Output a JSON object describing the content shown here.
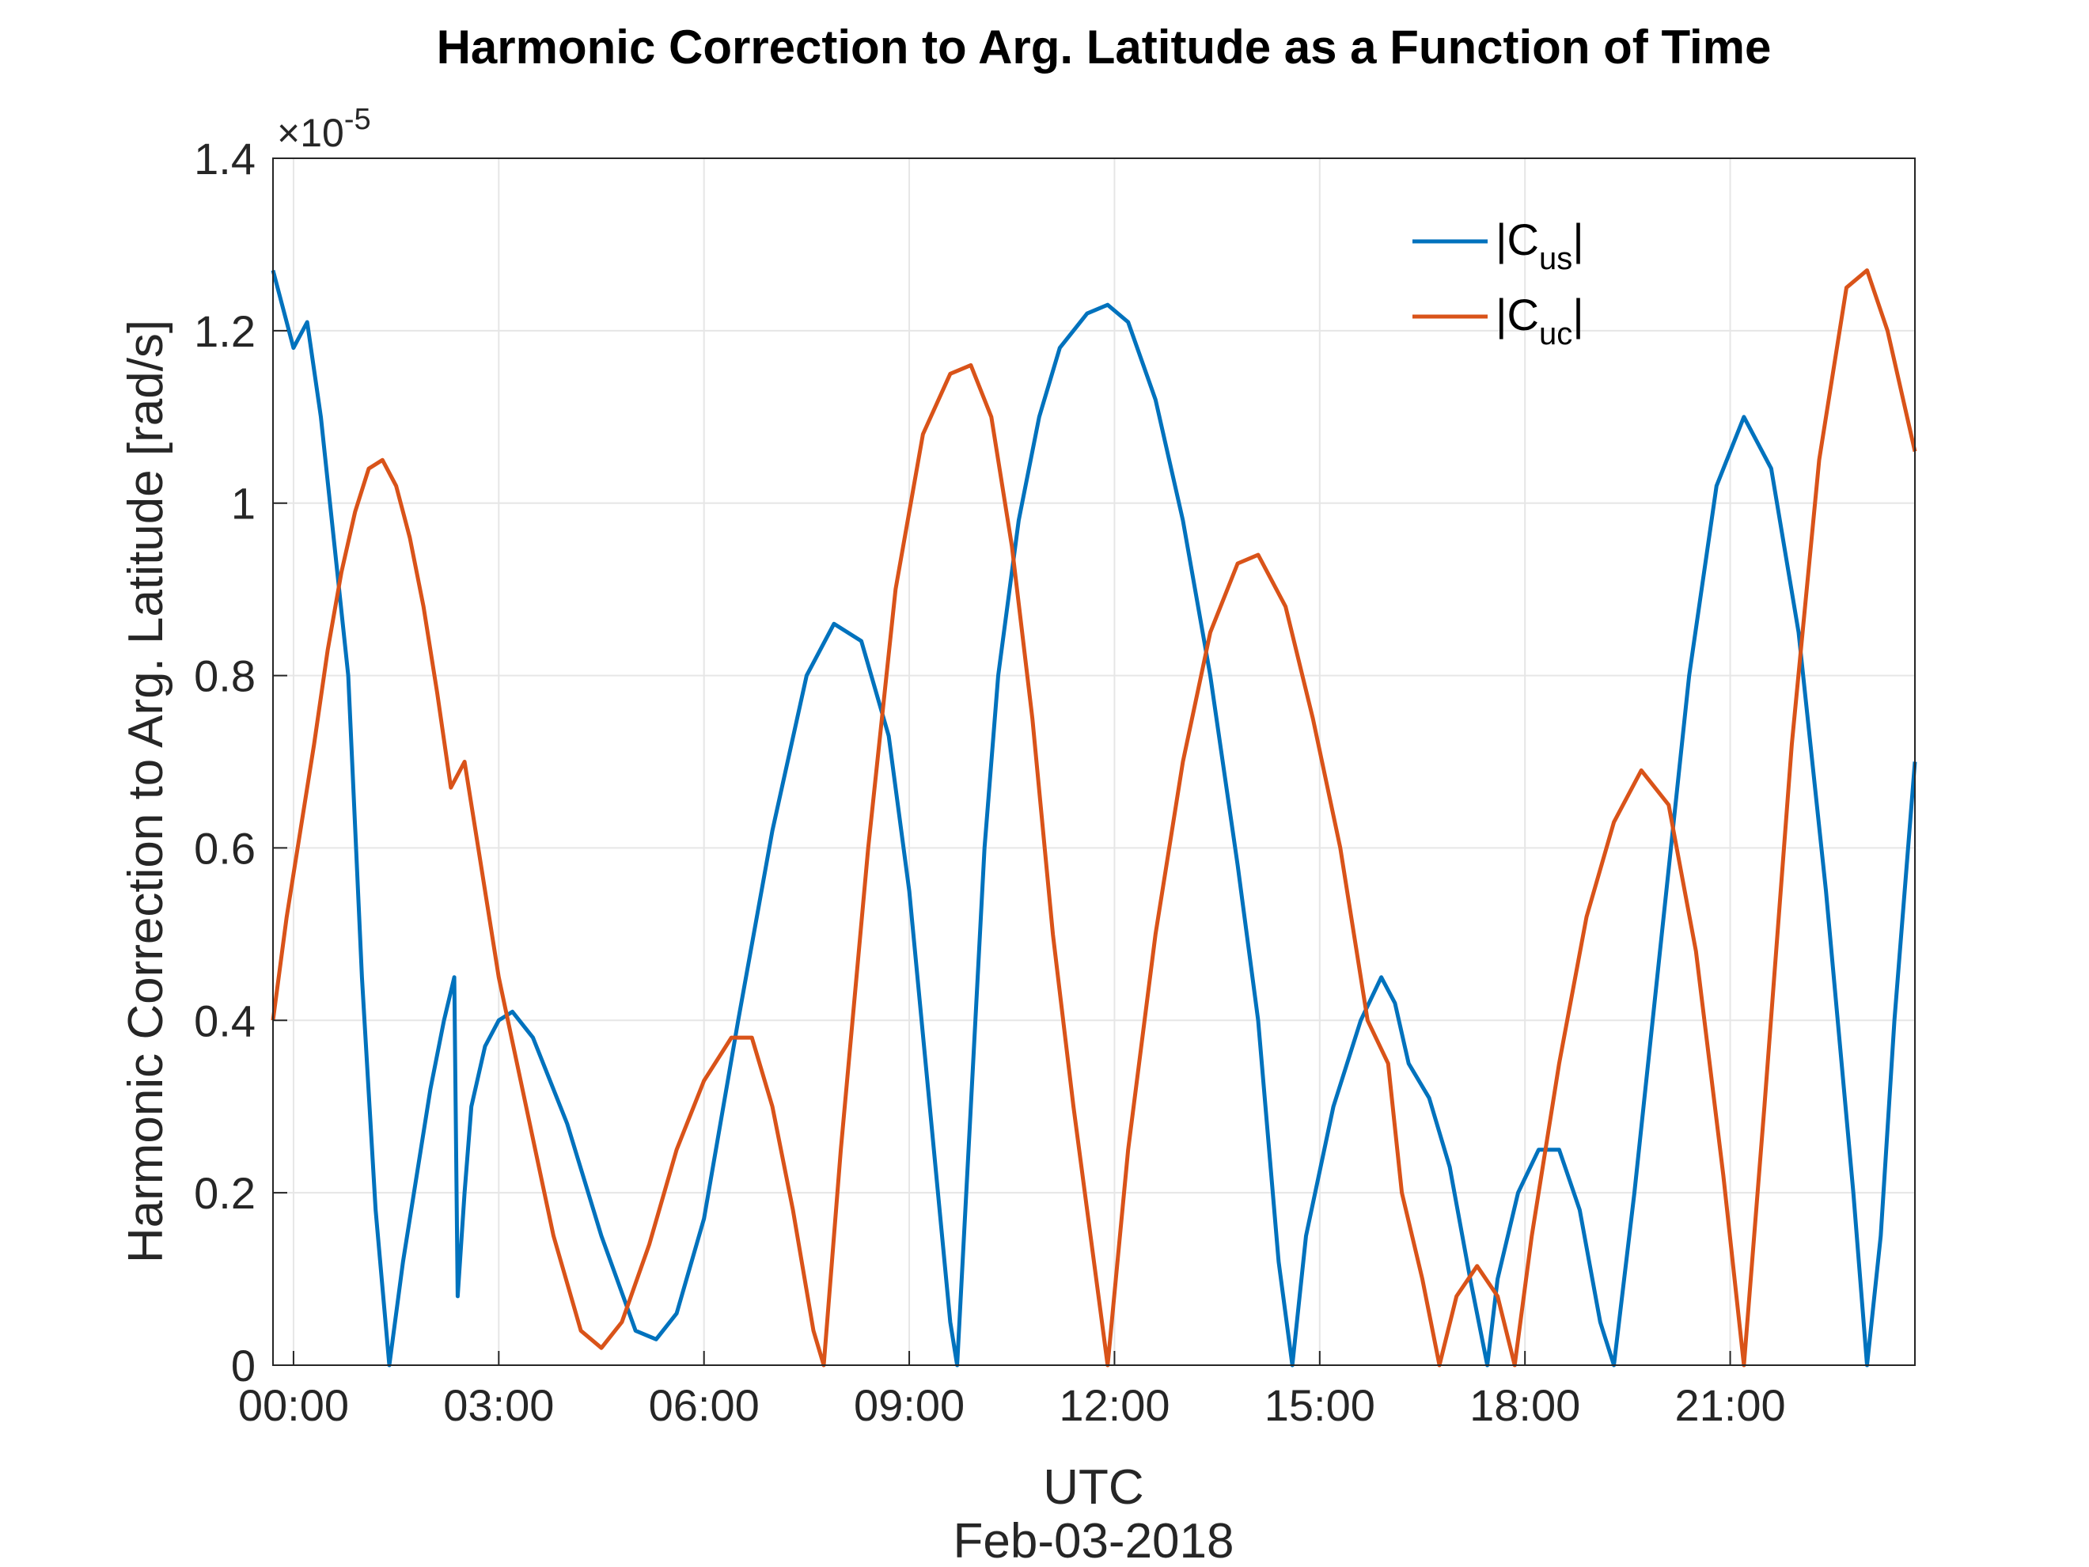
{
  "chart_data": {
    "type": "line",
    "title": "Harmonic Correction to Arg. Latitude as a Function of Time",
    "xlabel": "UTC",
    "xlabel2": "Feb-03-2018",
    "ylabel": "Harmonic Correction to Arg. Latitude [rad/s]",
    "y_exponent": "×10",
    "y_exponent_power": "-5",
    "ylim": [
      0,
      1.4
    ],
    "xlim": [
      -0.3,
      23.7
    ],
    "grid": true,
    "legend_position": "top-right",
    "y_ticks": [
      "0",
      "0.2",
      "0.4",
      "0.6",
      "0.8",
      "1",
      "1.2",
      "1.4"
    ],
    "x_ticks": [
      {
        "x": 0,
        "label": "00:00"
      },
      {
        "x": 3,
        "label": "03:00"
      },
      {
        "x": 6,
        "label": "06:00"
      },
      {
        "x": 9,
        "label": "09:00"
      },
      {
        "x": 12,
        "label": "12:00"
      },
      {
        "x": 15,
        "label": "15:00"
      },
      {
        "x": 18,
        "label": "18:00"
      },
      {
        "x": 21,
        "label": "21:00"
      }
    ],
    "series": [
      {
        "name": "|C",
        "subscript": "us",
        "color": "#0072BD",
        "points": [
          [
            -0.3,
            1.27
          ],
          [
            0.0,
            1.18
          ],
          [
            0.2,
            1.21
          ],
          [
            0.4,
            1.1
          ],
          [
            0.6,
            0.95
          ],
          [
            0.8,
            0.8
          ],
          [
            1.0,
            0.45
          ],
          [
            1.2,
            0.18
          ],
          [
            1.4,
            0.0
          ],
          [
            1.6,
            0.12
          ],
          [
            1.8,
            0.22
          ],
          [
            2.0,
            0.32
          ],
          [
            2.2,
            0.4
          ],
          [
            2.35,
            0.45
          ],
          [
            2.4,
            0.08
          ],
          [
            2.5,
            0.2
          ],
          [
            2.6,
            0.3
          ],
          [
            2.8,
            0.37
          ],
          [
            3.0,
            0.4
          ],
          [
            3.2,
            0.41
          ],
          [
            3.5,
            0.38
          ],
          [
            4.0,
            0.28
          ],
          [
            4.5,
            0.15
          ],
          [
            5.0,
            0.04
          ],
          [
            5.3,
            0.03
          ],
          [
            5.6,
            0.06
          ],
          [
            6.0,
            0.17
          ],
          [
            6.5,
            0.4
          ],
          [
            7.0,
            0.62
          ],
          [
            7.5,
            0.8
          ],
          [
            7.9,
            0.86
          ],
          [
            8.3,
            0.84
          ],
          [
            8.7,
            0.73
          ],
          [
            9.0,
            0.55
          ],
          [
            9.3,
            0.3
          ],
          [
            9.6,
            0.05
          ],
          [
            9.7,
            0.0
          ],
          [
            9.9,
            0.3
          ],
          [
            10.1,
            0.6
          ],
          [
            10.3,
            0.8
          ],
          [
            10.6,
            0.98
          ],
          [
            10.9,
            1.1
          ],
          [
            11.2,
            1.18
          ],
          [
            11.6,
            1.22
          ],
          [
            11.9,
            1.23
          ],
          [
            12.2,
            1.21
          ],
          [
            12.6,
            1.12
          ],
          [
            13.0,
            0.98
          ],
          [
            13.4,
            0.8
          ],
          [
            13.8,
            0.58
          ],
          [
            14.1,
            0.4
          ],
          [
            14.4,
            0.12
          ],
          [
            14.6,
            0.0
          ],
          [
            14.8,
            0.15
          ],
          [
            15.2,
            0.3
          ],
          [
            15.6,
            0.4
          ],
          [
            15.9,
            0.45
          ],
          [
            16.1,
            0.42
          ],
          [
            16.3,
            0.35
          ],
          [
            16.6,
            0.31
          ],
          [
            16.9,
            0.23
          ],
          [
            17.2,
            0.1
          ],
          [
            17.45,
            0.0
          ],
          [
            17.6,
            0.1
          ],
          [
            17.9,
            0.2
          ],
          [
            18.2,
            0.25
          ],
          [
            18.5,
            0.25
          ],
          [
            18.8,
            0.18
          ],
          [
            19.1,
            0.05
          ],
          [
            19.3,
            0.0
          ],
          [
            19.6,
            0.2
          ],
          [
            20.0,
            0.5
          ],
          [
            20.4,
            0.8
          ],
          [
            20.8,
            1.02
          ],
          [
            21.2,
            1.1
          ],
          [
            21.6,
            1.04
          ],
          [
            22.0,
            0.85
          ],
          [
            22.4,
            0.55
          ],
          [
            22.8,
            0.2
          ],
          [
            23.0,
            0.0
          ],
          [
            23.2,
            0.15
          ],
          [
            23.4,
            0.4
          ],
          [
            23.7,
            0.7
          ]
        ]
      },
      {
        "name": "|C",
        "subscript": "uc",
        "color": "#D95319",
        "points": [
          [
            -0.3,
            0.4
          ],
          [
            -0.1,
            0.52
          ],
          [
            0.1,
            0.62
          ],
          [
            0.3,
            0.72
          ],
          [
            0.5,
            0.83
          ],
          [
            0.7,
            0.92
          ],
          [
            0.9,
            0.99
          ],
          [
            1.1,
            1.04
          ],
          [
            1.3,
            1.05
          ],
          [
            1.5,
            1.02
          ],
          [
            1.7,
            0.96
          ],
          [
            1.9,
            0.88
          ],
          [
            2.1,
            0.78
          ],
          [
            2.3,
            0.67
          ],
          [
            2.5,
            0.7
          ],
          [
            2.7,
            0.6
          ],
          [
            3.0,
            0.45
          ],
          [
            3.4,
            0.3
          ],
          [
            3.8,
            0.15
          ],
          [
            4.2,
            0.04
          ],
          [
            4.5,
            0.02
          ],
          [
            4.8,
            0.05
          ],
          [
            5.2,
            0.14
          ],
          [
            5.6,
            0.25
          ],
          [
            6.0,
            0.33
          ],
          [
            6.4,
            0.38
          ],
          [
            6.7,
            0.38
          ],
          [
            7.0,
            0.3
          ],
          [
            7.3,
            0.18
          ],
          [
            7.6,
            0.04
          ],
          [
            7.75,
            0.0
          ],
          [
            8.0,
            0.25
          ],
          [
            8.4,
            0.6
          ],
          [
            8.8,
            0.9
          ],
          [
            9.2,
            1.08
          ],
          [
            9.6,
            1.15
          ],
          [
            9.9,
            1.16
          ],
          [
            10.2,
            1.1
          ],
          [
            10.5,
            0.95
          ],
          [
            10.8,
            0.75
          ],
          [
            11.1,
            0.5
          ],
          [
            11.4,
            0.3
          ],
          [
            11.7,
            0.12
          ],
          [
            11.9,
            0.0
          ],
          [
            12.2,
            0.25
          ],
          [
            12.6,
            0.5
          ],
          [
            13.0,
            0.7
          ],
          [
            13.4,
            0.85
          ],
          [
            13.8,
            0.93
          ],
          [
            14.1,
            0.94
          ],
          [
            14.5,
            0.88
          ],
          [
            14.9,
            0.75
          ],
          [
            15.3,
            0.6
          ],
          [
            15.7,
            0.4
          ],
          [
            16.0,
            0.35
          ],
          [
            16.2,
            0.2
          ],
          [
            16.5,
            0.1
          ],
          [
            16.75,
            0.0
          ],
          [
            17.0,
            0.08
          ],
          [
            17.3,
            0.115
          ],
          [
            17.6,
            0.08
          ],
          [
            17.85,
            0.0
          ],
          [
            18.1,
            0.15
          ],
          [
            18.5,
            0.35
          ],
          [
            18.9,
            0.52
          ],
          [
            19.3,
            0.63
          ],
          [
            19.7,
            0.69
          ],
          [
            20.1,
            0.65
          ],
          [
            20.5,
            0.48
          ],
          [
            20.9,
            0.22
          ],
          [
            21.2,
            0.0
          ],
          [
            21.5,
            0.3
          ],
          [
            21.9,
            0.72
          ],
          [
            22.3,
            1.05
          ],
          [
            22.7,
            1.25
          ],
          [
            23.0,
            1.27
          ],
          [
            23.3,
            1.2
          ],
          [
            23.7,
            1.06
          ]
        ]
      }
    ]
  }
}
